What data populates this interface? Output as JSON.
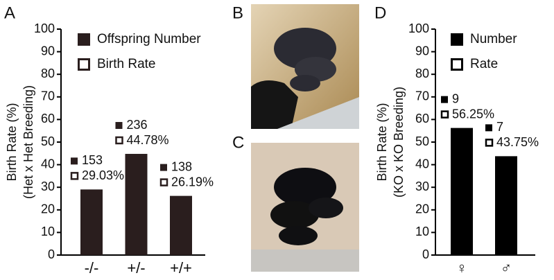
{
  "photo_labels": [
    "B",
    "C"
  ],
  "chart_data": [
    {
      "type": "bar",
      "panel": "A",
      "y_label": [
        "Birth Rate (%)",
        "(Het x Het Breeding)"
      ],
      "categories": [
        "-/-",
        "+/-",
        "+/+"
      ],
      "series": [
        {
          "name": "Offspring Number",
          "color": "#2a1e1e",
          "values": [
            153,
            236,
            138
          ]
        },
        {
          "name": "Birth Rate",
          "color": "#2a1e1e",
          "values": [
            29.03,
            44.78,
            26.19
          ],
          "value_labels": [
            "29.03%",
            "44.78%",
            "26.19%"
          ]
        }
      ],
      "ylim": [
        0,
        100
      ],
      "yticks": [
        0,
        10,
        20,
        30,
        40,
        50,
        60,
        70,
        80,
        90,
        100
      ]
    },
    {
      "type": "bar",
      "panel": "D",
      "y_label": [
        "Birth Rate (%)",
        "(KO x KO Breeding)"
      ],
      "categories": [
        "♀",
        "♂"
      ],
      "series": [
        {
          "name": "Number",
          "color": "#000000",
          "values": [
            9,
            7
          ]
        },
        {
          "name": "Rate",
          "color": "#000000",
          "values": [
            56.25,
            43.75
          ],
          "value_labels": [
            "56.25%",
            "43.75%"
          ]
        }
      ],
      "ylim": [
        0,
        100
      ],
      "yticks": [
        0,
        10,
        20,
        30,
        40,
        50,
        60,
        70,
        80,
        90,
        100
      ]
    }
  ]
}
